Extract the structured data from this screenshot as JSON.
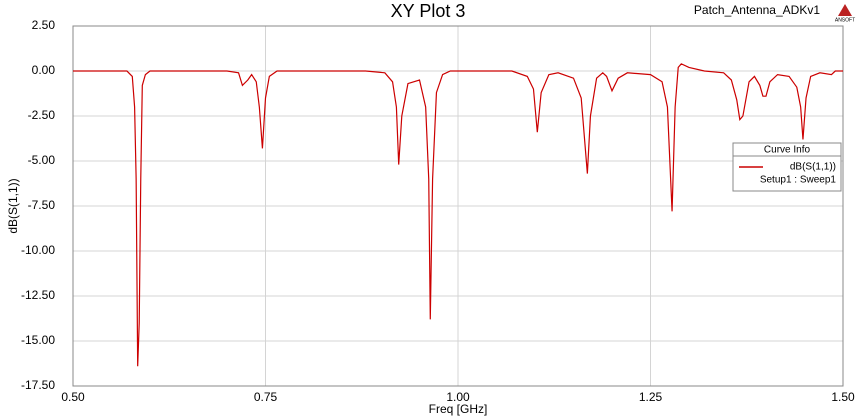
{
  "chart_data": {
    "type": "line",
    "title": "XY Plot 3",
    "project": "Patch_Antenna_ADKv1",
    "logo": "ANSOFT",
    "x_label": "Freq [GHz]",
    "y_label": "dB(S(1,1))",
    "legend_title": "Curve Info",
    "legend_position": "right",
    "xlim": [
      0.5,
      1.5
    ],
    "xticks": [
      {
        "value": 0.5,
        "label": "0.50"
      },
      {
        "value": 0.75,
        "label": "0.75"
      },
      {
        "value": 1,
        "label": "1.00"
      },
      {
        "value": 1.25,
        "label": "1.25"
      },
      {
        "value": 1.5,
        "label": "1.50"
      }
    ],
    "ylim": [
      -17.5,
      2.5
    ],
    "yticks": [
      {
        "value": 2.5,
        "label": "2.50"
      },
      {
        "value": 0,
        "label": "0.00"
      },
      {
        "value": -2.5,
        "label": "-2.50"
      },
      {
        "value": -5,
        "label": "-5.00"
      },
      {
        "value": -7.5,
        "label": "-7.50"
      },
      {
        "value": -10,
        "label": "-10.00"
      },
      {
        "value": -12.5,
        "label": "-12.50"
      },
      {
        "value": -15,
        "label": "-15.00"
      },
      {
        "value": -17.5,
        "label": "-17.50"
      }
    ],
    "grid": true,
    "x": [
      0.5,
      0.57,
      0.577,
      0.58,
      0.582,
      0.584,
      0.586,
      0.588,
      0.59,
      0.594,
      0.6,
      0.7,
      0.715,
      0.72,
      0.727,
      0.732,
      0.738,
      0.742,
      0.746,
      0.75,
      0.755,
      0.765,
      0.88,
      0.905,
      0.915,
      0.92,
      0.923,
      0.927,
      0.935,
      0.95,
      0.958,
      0.962,
      0.964,
      0.967,
      0.972,
      0.98,
      0.99,
      1.07,
      1.09,
      1.098,
      1.103,
      1.108,
      1.118,
      1.13,
      1.15,
      1.16,
      1.168,
      1.172,
      1.18,
      1.188,
      1.193,
      1.2,
      1.208,
      1.22,
      1.25,
      1.265,
      1.272,
      1.278,
      1.282,
      1.286,
      1.29,
      1.3,
      1.32,
      1.345,
      1.355,
      1.362,
      1.366,
      1.37,
      1.378,
      1.385,
      1.392,
      1.396,
      1.4,
      1.405,
      1.415,
      1.43,
      1.44,
      1.445,
      1.448,
      1.452,
      1.458,
      1.47,
      1.485,
      1.49,
      1.5
    ],
    "series": [
      {
        "name": "dB(S(1,1))",
        "setup": "Setup1 : Sweep1",
        "color": "#cc0000",
        "values": [
          0,
          0,
          -0.3,
          -2,
          -6,
          -16.4,
          -14,
          -6,
          -0.8,
          -0.2,
          0,
          0,
          -0.1,
          -0.8,
          -0.5,
          -0.2,
          -0.6,
          -2,
          -4.3,
          -1.5,
          -0.3,
          0,
          0,
          -0.1,
          -0.6,
          -2,
          -5.2,
          -2.5,
          -0.7,
          -0.5,
          -2,
          -6,
          -13.8,
          -6,
          -1.2,
          -0.2,
          0,
          0,
          -0.3,
          -1,
          -3.4,
          -1.2,
          -0.2,
          -0.1,
          -0.4,
          -1.5,
          -5.7,
          -2.5,
          -0.4,
          -0.1,
          -0.3,
          -1.1,
          -0.4,
          -0.1,
          -0.2,
          -0.6,
          -2,
          -7.8,
          -2,
          0.2,
          0.4,
          0.2,
          0,
          -0.1,
          -0.5,
          -1.6,
          -2.7,
          -2.5,
          -0.6,
          -0.3,
          -0.8,
          -1.4,
          -1.4,
          -0.6,
          -0.2,
          -0.3,
          -0.9,
          -2,
          -3.8,
          -1.5,
          -0.3,
          -0.1,
          -0.2,
          0,
          0
        ]
      }
    ]
  }
}
